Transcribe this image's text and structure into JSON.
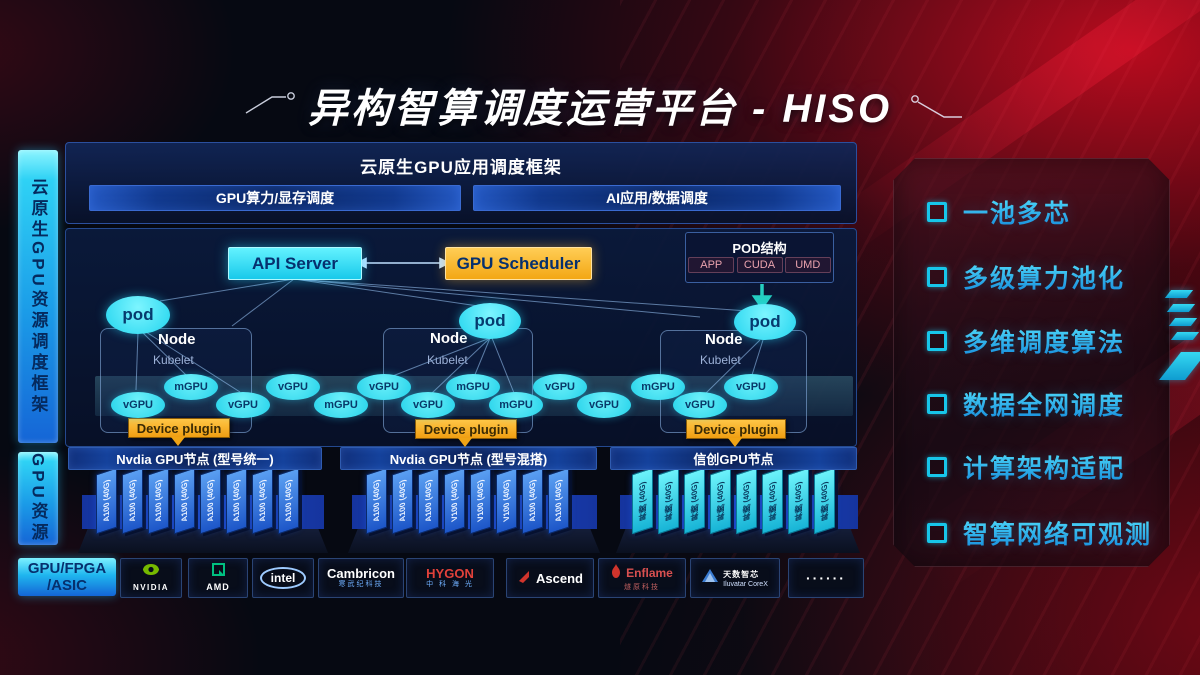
{
  "title": "异构智算调度运营平台 - HISO",
  "sidebar": {
    "frame_label": "云原生GPU资源调度框架",
    "resource_label": "GPU资源",
    "hw_line1": "GPU/FPGA",
    "hw_line2": "/ASIC"
  },
  "app_frame": {
    "title": "云原生GPU应用调度框架",
    "bar_left": "GPU算力/显存调度",
    "bar_right": "AI应用/数据调度"
  },
  "control": {
    "api_server": "API Server",
    "gpu_scheduler": "GPU Scheduler",
    "pod_title": "POD结构",
    "pod_items": [
      "APP",
      "CUDA",
      "UMD"
    ]
  },
  "cluster": {
    "pod": "pod",
    "node": "Node",
    "kubelet": "Kubelet",
    "device_plugin": "Device plugin"
  },
  "gpu_pool": {
    "items": [
      "vGPU",
      "mGPU",
      "vGPU",
      "vGPU",
      "mGPU",
      "vGPU",
      "vGPU",
      "mGPU",
      "mGPU",
      "vGPU",
      "vGPU",
      "mGPU",
      "vGPU",
      "vGPU"
    ]
  },
  "node_groups": [
    {
      "label": "Nvdia GPU节点 (型号统一)",
      "cards": [
        "A100 (40G)",
        "A100 (40G)",
        "A100 (40G)",
        "A100 (40G)",
        "A100 (40G)",
        "A100 (40G)",
        "A100 (40G)",
        "A100 (40G)"
      ]
    },
    {
      "label": "Nvdia GPU节点 (型号混搭)",
      "cards": [
        "A100 (40G)",
        "A100 (40G)",
        "A100 (40G)",
        "V100 (40G)",
        "V100 (40G)",
        "V100 (40G)",
        "A100 (40G)",
        "A100 (40G)"
      ]
    },
    {
      "label": "信创GPU节点",
      "cards": [
        "昇腾 (40G)",
        "昇腾 (40G)",
        "昇腾 (40G)",
        "昇腾 (40G)",
        "昇腾 (40G)",
        "昇腾 (40G)",
        "昇腾 (40G)",
        "昇腾 (40G)"
      ]
    }
  ],
  "features": {
    "items": [
      "一池多芯",
      "多级算力池化",
      "多维调度算法",
      "数据全网调度",
      "计算架构适配",
      "智算网络可观测"
    ]
  },
  "vendors": [
    {
      "name": "NVIDIA",
      "icon": "nvidia"
    },
    {
      "name": "AMD",
      "icon": "amd"
    },
    {
      "name": "intel",
      "icon": "intel"
    },
    {
      "name": "Cambricon",
      "sub": "寒武纪科技"
    },
    {
      "name": "HYGON",
      "sub": "中 科 海 光",
      "accent": "#e2413a"
    },
    {
      "name": "Ascend",
      "icon": "ascend"
    },
    {
      "name": "Enflame",
      "sub": "燧原科技",
      "icon": "flame",
      "accent": "#d85050"
    },
    {
      "name": "天数智芯",
      "sub": "Iluvatar CoreX",
      "icon": "iluvatar"
    },
    {
      "name": "······"
    }
  ],
  "colors": {
    "cyan": "#2bd9f2",
    "orange": "#f5a81c",
    "card_blue": "#2e6fd8",
    "red": "#b01020"
  }
}
